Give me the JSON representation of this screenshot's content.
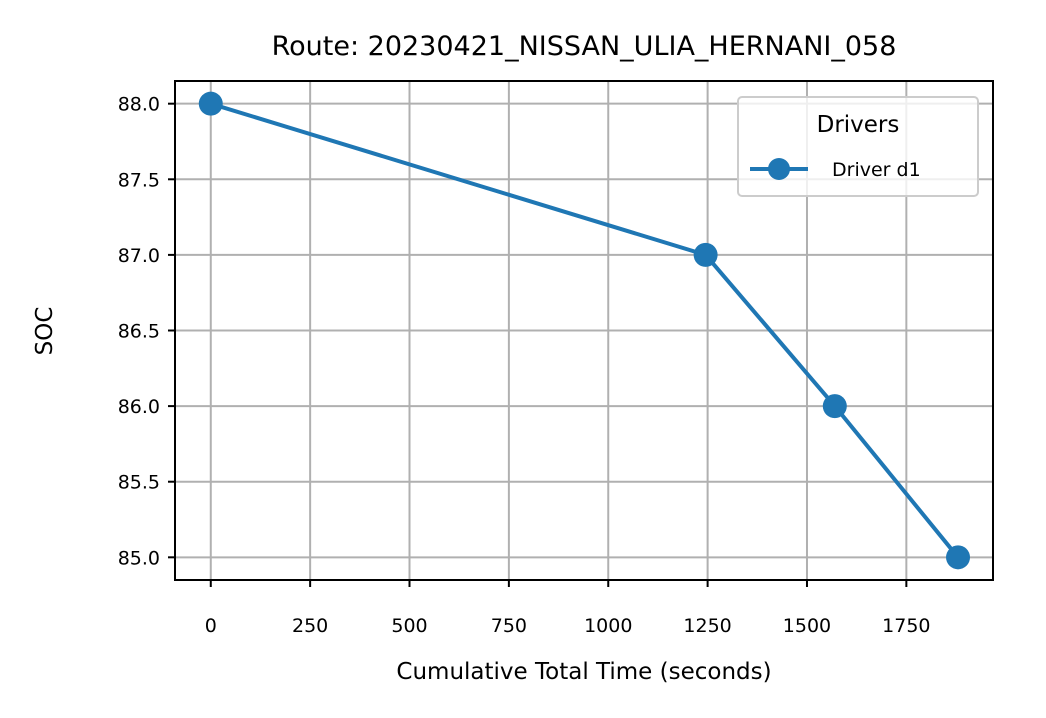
{
  "chart_data": {
    "type": "line",
    "title": "Route: 20230421_NISSAN_ULIA_HERNANI_058",
    "xlabel": "Cumulative Total Time (seconds)",
    "ylabel": "SOC",
    "xlim": [
      -90,
      1968
    ],
    "ylim": [
      84.85,
      88.15
    ],
    "xticks": [
      0,
      250,
      500,
      750,
      1000,
      1250,
      1500,
      1750
    ],
    "yticks": [
      85.0,
      85.5,
      86.0,
      86.5,
      87.0,
      87.5,
      88.0
    ],
    "xtick_labels": [
      "0",
      "250",
      "500",
      "750",
      "1000",
      "1250",
      "1500",
      "1750"
    ],
    "ytick_labels": [
      "85.0",
      "85.5",
      "86.0",
      "86.5",
      "87.0",
      "87.5",
      "88.0"
    ],
    "grid": true,
    "legend": {
      "title": "Drivers",
      "placement": "top-right"
    },
    "series": [
      {
        "name": "Driver d1",
        "color": "#1f77b4",
        "x": [
          0,
          1245,
          1570,
          1880
        ],
        "y": [
          88.0,
          87.0,
          86.0,
          85.0
        ]
      }
    ]
  }
}
